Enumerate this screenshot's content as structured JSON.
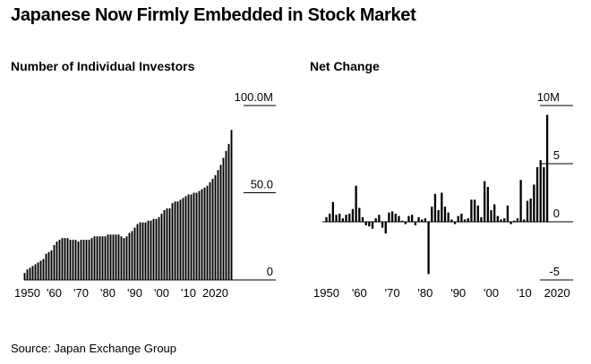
{
  "title": "Japanese Now Firmly Embedded in Stock Market",
  "source": "Source: Japan Exchange Group",
  "chart_data": [
    {
      "type": "bar",
      "title": "Number of Individual Investors",
      "ylim": [
        0,
        100
      ],
      "y_ticks": [
        {
          "value": 100,
          "label": "100.0M"
        },
        {
          "value": 50,
          "label": "50.0"
        },
        {
          "value": 0,
          "label": "0"
        }
      ],
      "x_ticks": [
        {
          "year": 1950,
          "label": "1950"
        },
        {
          "year": 1960,
          "label": "'60"
        },
        {
          "year": 1970,
          "label": "'70"
        },
        {
          "year": 1980,
          "label": "'80"
        },
        {
          "year": 1990,
          "label": "'90"
        },
        {
          "year": 2000,
          "label": "'00"
        },
        {
          "year": 2010,
          "label": "'10"
        },
        {
          "year": 2020,
          "label": "2020"
        }
      ],
      "x_start": 1949,
      "values": [
        4,
        6,
        7,
        8,
        9,
        10,
        11,
        12,
        15,
        16,
        17,
        20,
        22,
        23,
        24,
        24,
        24,
        23,
        23,
        23,
        22,
        23,
        23,
        23,
        23,
        24,
        25,
        25,
        25,
        25,
        25,
        26,
        26,
        26,
        26,
        26,
        25,
        24,
        25,
        27,
        28,
        30,
        32,
        33,
        33,
        33,
        34,
        34,
        35,
        35,
        36,
        38,
        40,
        41,
        41,
        44,
        45,
        45,
        46,
        47,
        48,
        49,
        49,
        50,
        50,
        51,
        52,
        53,
        54,
        56,
        58,
        60,
        63,
        66,
        70,
        74,
        78,
        86
      ]
    },
    {
      "type": "bar",
      "title": "Net Change",
      "ylim": [
        -5,
        10
      ],
      "y_ticks": [
        {
          "value": 10,
          "label": "10M"
        },
        {
          "value": 5,
          "label": "5"
        },
        {
          "value": 0,
          "label": "0"
        },
        {
          "value": -5,
          "label": "-5"
        }
      ],
      "x_ticks": [
        {
          "year": 1950,
          "label": "1950"
        },
        {
          "year": 1960,
          "label": "'60"
        },
        {
          "year": 1970,
          "label": "'70"
        },
        {
          "year": 1980,
          "label": "'80"
        },
        {
          "year": 1990,
          "label": "'90"
        },
        {
          "year": 2000,
          "label": "'00"
        },
        {
          "year": 2010,
          "label": "'10"
        },
        {
          "year": 2020,
          "label": "2020"
        }
      ],
      "x_start": 1950,
      "values": [
        0.4,
        0.7,
        1.7,
        0.6,
        0.7,
        0.3,
        0.6,
        0.7,
        1.1,
        3.1,
        1.2,
        0.4,
        -0.3,
        -0.4,
        -0.6,
        0.3,
        0.6,
        -0.5,
        -1.0,
        0.8,
        0.9,
        0.7,
        0.5,
        0.1,
        -0.2,
        0.5,
        0.6,
        -0.3,
        0.4,
        0.2,
        0.3,
        -4.5,
        1.3,
        2.4,
        1.0,
        2.5,
        1.3,
        0.8,
        0.2,
        -0.2,
        0.5,
        0.7,
        0.2,
        0.3,
        1.9,
        1.9,
        1.4,
        0.4,
        3.5,
        3.0,
        1.0,
        1.5,
        0.5,
        0.2,
        0.3,
        1.4,
        -0.2,
        0.1,
        0.3,
        3.6,
        0.2,
        1.8,
        2.0,
        3.2,
        4.7,
        5.3,
        4.7,
        9.2
      ]
    }
  ]
}
